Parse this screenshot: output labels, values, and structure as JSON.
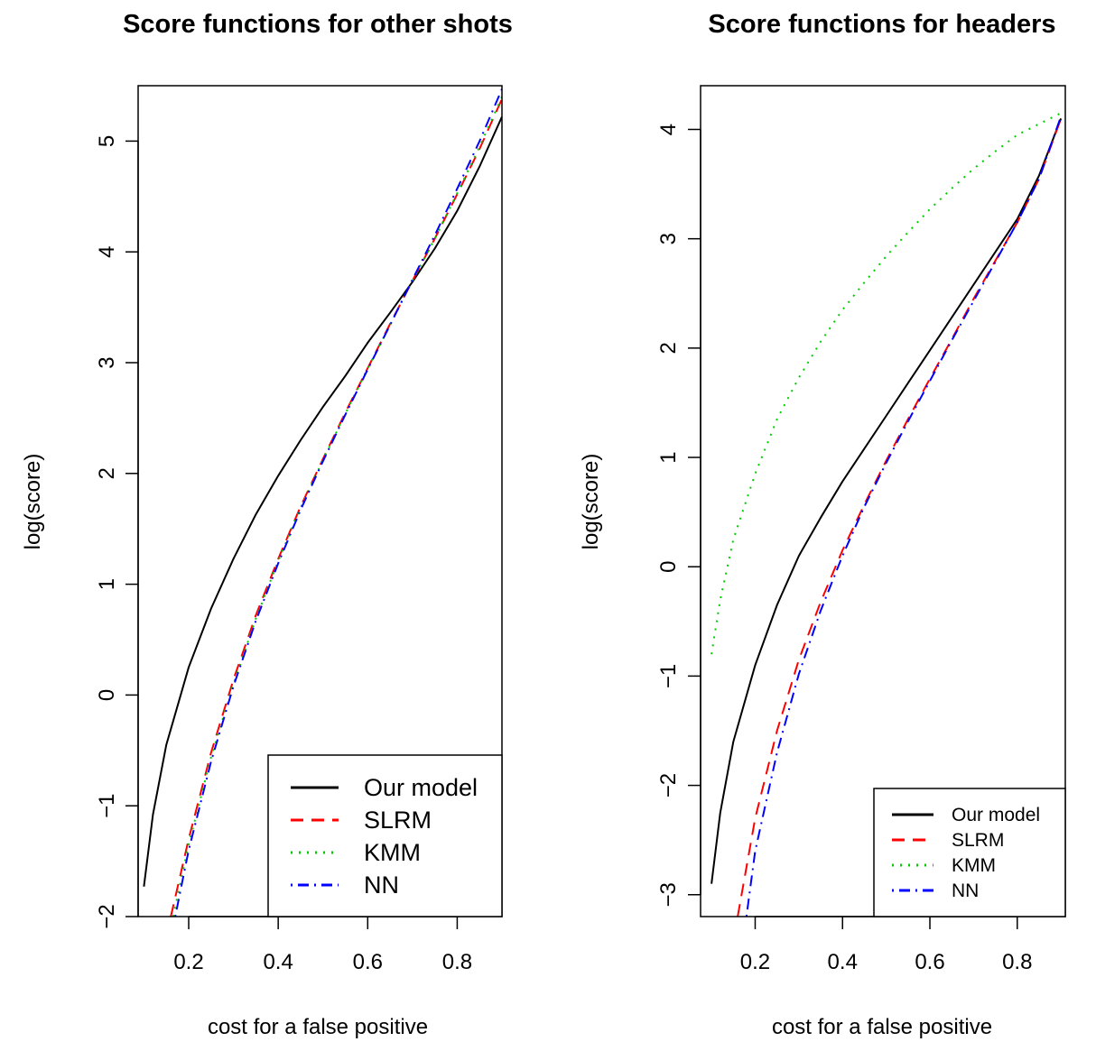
{
  "colors": {
    "our_model": "#000000",
    "slrm": "#ff0000",
    "kmm": "#00cd00",
    "nn": "#0000ff"
  },
  "chart_data": [
    {
      "type": "line",
      "title": "Score functions for other shots",
      "xlabel": "cost for a false positive",
      "ylabel": "log(score)",
      "xlim": [
        0.087,
        0.9
      ],
      "ylim": [
        -2.0,
        5.5
      ],
      "xticks": [
        0.2,
        0.4,
        0.6,
        0.8
      ],
      "xtick_labels": [
        "0.2",
        "0.4",
        "0.6",
        "0.8"
      ],
      "yticks": [
        -2,
        -1,
        0,
        1,
        2,
        3,
        4,
        5
      ],
      "ytick_labels": [
        "−2",
        "−1",
        "0",
        "1",
        "2",
        "3",
        "4",
        "5"
      ],
      "legend_position": "bottom-right",
      "legend": [
        "Our model",
        "SLRM",
        "KMM",
        "NN"
      ],
      "series": [
        {
          "name": "Our model",
          "style": "solid",
          "color_key": "our_model",
          "x": [
            0.1,
            0.12,
            0.15,
            0.2,
            0.25,
            0.3,
            0.35,
            0.4,
            0.45,
            0.5,
            0.55,
            0.6,
            0.65,
            0.7,
            0.75,
            0.8,
            0.85,
            0.9
          ],
          "y": [
            -1.73,
            -1.08,
            -0.45,
            0.25,
            0.78,
            1.23,
            1.63,
            1.98,
            2.3,
            2.6,
            2.88,
            3.18,
            3.45,
            3.73,
            4.03,
            4.37,
            4.77,
            5.22
          ]
        },
        {
          "name": "SLRM",
          "style": "dashed",
          "color_key": "slrm",
          "x": [
            0.16,
            0.2,
            0.25,
            0.3,
            0.35,
            0.4,
            0.45,
            0.5,
            0.55,
            0.6,
            0.65,
            0.7,
            0.75,
            0.8,
            0.85,
            0.9
          ],
          "y": [
            -2.0,
            -1.3,
            -0.52,
            0.14,
            0.72,
            1.23,
            1.7,
            2.13,
            2.55,
            2.95,
            3.35,
            3.74,
            4.12,
            4.52,
            4.93,
            5.38
          ]
        },
        {
          "name": "KMM",
          "style": "dotted",
          "color_key": "kmm",
          "x": [
            0.165,
            0.2,
            0.25,
            0.3,
            0.35,
            0.4,
            0.45,
            0.5,
            0.55,
            0.6,
            0.65,
            0.7,
            0.75,
            0.8,
            0.85,
            0.9
          ],
          "y": [
            -2.0,
            -1.35,
            -0.56,
            0.1,
            0.69,
            1.21,
            1.69,
            2.12,
            2.54,
            2.95,
            3.34,
            3.74,
            4.12,
            4.53,
            4.95,
            5.4
          ]
        },
        {
          "name": "NN",
          "style": "dotdash",
          "color_key": "nn",
          "x": [
            0.17,
            0.2,
            0.25,
            0.3,
            0.35,
            0.4,
            0.45,
            0.5,
            0.55,
            0.6,
            0.65,
            0.7,
            0.75,
            0.8,
            0.85,
            0.9
          ],
          "y": [
            -2.0,
            -1.4,
            -0.6,
            0.08,
            0.67,
            1.19,
            1.67,
            2.11,
            2.53,
            2.94,
            3.34,
            3.75,
            4.15,
            4.57,
            5.0,
            5.47
          ]
        }
      ]
    },
    {
      "type": "line",
      "title": "Score functions for headers",
      "xlabel": "cost for a false positive",
      "ylabel": "log(score)",
      "xlim": [
        0.075,
        0.91
      ],
      "ylim": [
        -3.2,
        4.4
      ],
      "xticks": [
        0.2,
        0.4,
        0.6,
        0.8
      ],
      "xtick_labels": [
        "0.2",
        "0.4",
        "0.6",
        "0.8"
      ],
      "yticks": [
        -3,
        -2,
        -1,
        0,
        1,
        2,
        3,
        4
      ],
      "ytick_labels": [
        "−3",
        "−2",
        "−1",
        "0",
        "1",
        "2",
        "3",
        "4"
      ],
      "legend_position": "bottom-right",
      "legend": [
        "Our model",
        "SLRM",
        "KMM",
        "NN"
      ],
      "series": [
        {
          "name": "Our model",
          "style": "solid",
          "color_key": "our_model",
          "x": [
            0.1,
            0.12,
            0.15,
            0.2,
            0.25,
            0.3,
            0.35,
            0.4,
            0.45,
            0.5,
            0.55,
            0.6,
            0.65,
            0.7,
            0.75,
            0.8,
            0.85,
            0.9
          ],
          "y": [
            -2.9,
            -2.25,
            -1.6,
            -0.9,
            -0.35,
            0.1,
            0.45,
            0.78,
            1.08,
            1.38,
            1.68,
            1.98,
            2.28,
            2.58,
            2.88,
            3.18,
            3.58,
            4.1
          ]
        },
        {
          "name": "SLRM",
          "style": "dashed",
          "color_key": "slrm",
          "x": [
            0.16,
            0.2,
            0.25,
            0.3,
            0.35,
            0.4,
            0.45,
            0.5,
            0.55,
            0.6,
            0.65,
            0.7,
            0.75,
            0.8,
            0.85,
            0.9
          ],
          "y": [
            -3.2,
            -2.3,
            -1.5,
            -0.85,
            -0.32,
            0.15,
            0.57,
            0.97,
            1.35,
            1.72,
            2.08,
            2.45,
            2.8,
            3.15,
            3.55,
            4.1
          ]
        },
        {
          "name": "KMM",
          "style": "dotted",
          "color_key": "kmm",
          "x": [
            0.1,
            0.12,
            0.15,
            0.2,
            0.25,
            0.3,
            0.35,
            0.4,
            0.45,
            0.5,
            0.55,
            0.6,
            0.65,
            0.7,
            0.75,
            0.8,
            0.85,
            0.9
          ],
          "y": [
            -0.8,
            -0.3,
            0.25,
            0.85,
            1.35,
            1.73,
            2.06,
            2.35,
            2.6,
            2.84,
            3.06,
            3.27,
            3.46,
            3.64,
            3.8,
            3.95,
            4.05,
            4.15
          ]
        },
        {
          "name": "NN",
          "style": "dotdash",
          "color_key": "nn",
          "x": [
            0.18,
            0.2,
            0.25,
            0.3,
            0.35,
            0.4,
            0.45,
            0.5,
            0.55,
            0.6,
            0.65,
            0.7,
            0.75,
            0.8,
            0.85,
            0.9
          ],
          "y": [
            -3.2,
            -2.6,
            -1.7,
            -0.98,
            -0.4,
            0.1,
            0.55,
            0.95,
            1.33,
            1.7,
            2.07,
            2.43,
            2.79,
            3.15,
            3.55,
            4.12
          ]
        }
      ]
    }
  ]
}
